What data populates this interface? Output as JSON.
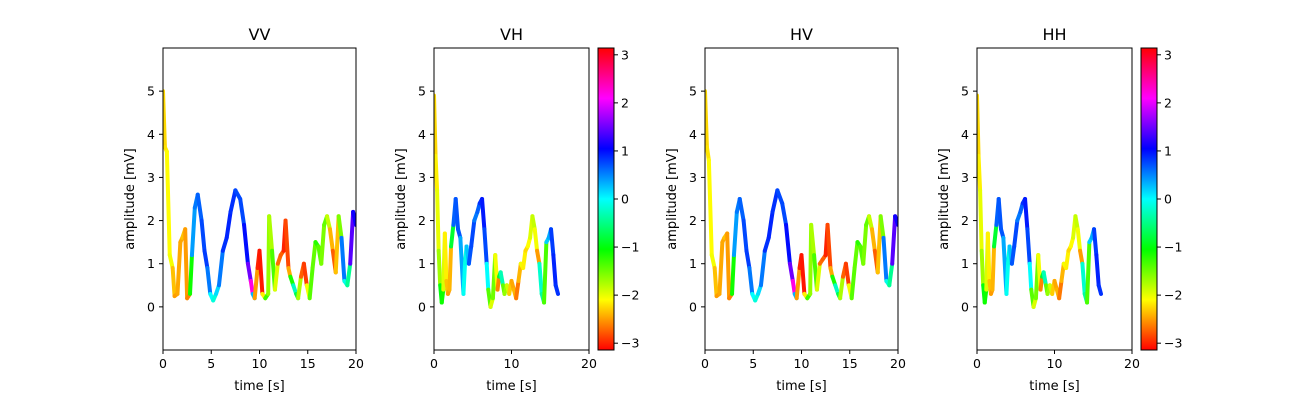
{
  "chart_data": [
    {
      "type": "line",
      "title": "VV",
      "xlabel": "time [s]",
      "ylabel": "amplitude [mV]",
      "xlim": [
        0,
        20
      ],
      "ylim": [
        -1,
        6
      ],
      "xticks": [
        0,
        5,
        10,
        15,
        20
      ],
      "yticks": [
        0,
        1,
        2,
        3,
        4,
        5
      ],
      "colorbar": false,
      "points": [
        [
          0.0,
          5.0,
          -2.3
        ],
        [
          0.2,
          3.7,
          -2.2
        ],
        [
          0.4,
          3.6,
          -2.2
        ],
        [
          0.7,
          1.2,
          -2.0
        ],
        [
          1.0,
          0.9,
          -2.1
        ],
        [
          1.2,
          0.25,
          -2.6
        ],
        [
          1.5,
          0.3,
          -2.4
        ],
        [
          1.8,
          1.5,
          -2.5
        ],
        [
          2.0,
          1.6,
          -2.4
        ],
        [
          2.3,
          1.8,
          -2.3
        ],
        [
          2.5,
          0.2,
          -2.7
        ],
        [
          2.8,
          0.3,
          -2.5
        ],
        [
          3.0,
          1.2,
          0.3
        ],
        [
          3.3,
          2.3,
          0.5
        ],
        [
          3.6,
          2.6,
          0.6
        ],
        [
          4.0,
          2.0,
          0.7
        ],
        [
          4.3,
          1.3,
          0.8
        ],
        [
          4.6,
          0.9,
          0.8
        ],
        [
          4.9,
          0.3,
          0.3
        ],
        [
          5.2,
          0.15,
          -0.3
        ],
        [
          5.5,
          0.3,
          0.0
        ],
        [
          5.8,
          0.5,
          0.3
        ],
        [
          6.2,
          1.3,
          0.8
        ],
        [
          6.6,
          1.6,
          0.9
        ],
        [
          7.0,
          2.2,
          0.9
        ],
        [
          7.5,
          2.7,
          0.8
        ],
        [
          8.0,
          2.5,
          0.7
        ],
        [
          8.4,
          1.9,
          0.8
        ],
        [
          8.8,
          1.0,
          1.2
        ],
        [
          9.1,
          0.6,
          1.8
        ],
        [
          9.3,
          0.3,
          2.6
        ],
        [
          9.5,
          0.2,
          -2.0
        ],
        [
          9.8,
          0.9,
          -3.0
        ],
        [
          10.0,
          1.3,
          -3.0
        ],
        [
          10.3,
          0.3,
          -3.1
        ],
        [
          10.6,
          0.2,
          -1.2
        ],
        [
          10.9,
          0.3,
          -1.4
        ],
        [
          11.0,
          2.1,
          -1.9
        ],
        [
          11.3,
          1.3,
          -1.6
        ],
        [
          11.6,
          0.4,
          -1.1
        ],
        [
          11.9,
          1.0,
          -2.8
        ],
        [
          12.2,
          1.2,
          -2.6
        ],
        [
          12.5,
          1.3,
          -2.9
        ],
        [
          12.7,
          2.0,
          -3.1
        ],
        [
          13.0,
          0.9,
          -2.6
        ],
        [
          13.2,
          0.7,
          -2.3
        ],
        [
          13.5,
          0.5,
          0.0
        ],
        [
          13.8,
          0.3,
          -0.5
        ],
        [
          14.0,
          0.2,
          -1.0
        ],
        [
          14.3,
          0.7,
          -2.5
        ],
        [
          14.6,
          1.0,
          -3.0
        ],
        [
          14.9,
          0.5,
          -2.8
        ],
        [
          15.2,
          0.2,
          -1.3
        ],
        [
          15.5,
          0.9,
          -1.5
        ],
        [
          15.8,
          1.5,
          -1.4
        ],
        [
          16.1,
          1.4,
          -1.0
        ],
        [
          16.4,
          1.0,
          -1.8
        ],
        [
          16.7,
          1.9,
          -1.3
        ],
        [
          17.0,
          2.1,
          -1.6
        ],
        [
          17.3,
          1.8,
          -2.1
        ],
        [
          17.6,
          1.3,
          -2.7
        ],
        [
          17.9,
          0.8,
          -2.8
        ],
        [
          18.2,
          2.1,
          -1.9
        ],
        [
          18.5,
          1.6,
          -1.2
        ],
        [
          18.8,
          0.6,
          2.3
        ],
        [
          19.1,
          0.5,
          -2.5
        ],
        [
          19.4,
          1.0,
          1.6
        ],
        [
          19.7,
          2.2,
          1.2
        ],
        [
          20.0,
          1.9,
          1.0
        ]
      ]
    },
    {
      "type": "line",
      "title": "VH",
      "xlabel": "time [s]",
      "ylabel": "amplitude [mV]",
      "xlim": [
        0,
        20
      ],
      "ylim": [
        -1,
        6
      ],
      "xticks": [
        0,
        10,
        20
      ],
      "yticks": [
        0,
        1,
        2,
        3,
        4,
        5
      ],
      "colorbar": true,
      "colorbar_ticks": [
        3,
        2,
        1,
        0,
        -1,
        -2,
        -3
      ],
      "points": [
        [
          0.0,
          4.9,
          -2.3
        ],
        [
          0.2,
          3.5,
          -2.2
        ],
        [
          0.4,
          2.7,
          -2.1
        ],
        [
          0.6,
          1.3,
          -1.9
        ],
        [
          0.8,
          0.5,
          -1.5
        ],
        [
          1.0,
          0.1,
          -0.5
        ],
        [
          1.2,
          0.4,
          -1.7
        ],
        [
          1.4,
          1.7,
          -2.2
        ],
        [
          1.6,
          0.6,
          -2.1
        ],
        [
          1.8,
          0.3,
          -2.6
        ],
        [
          2.0,
          0.4,
          -2.4
        ],
        [
          2.2,
          1.4,
          -2.4
        ],
        [
          2.5,
          1.9,
          0.7
        ],
        [
          2.8,
          2.5,
          0.6
        ],
        [
          3.1,
          1.8,
          0.8
        ],
        [
          3.4,
          1.6,
          0.6
        ],
        [
          3.8,
          0.3,
          0.1
        ],
        [
          4.0,
          1.0,
          -0.2
        ],
        [
          4.2,
          1.4,
          0.0
        ],
        [
          4.5,
          1.0,
          0.5
        ],
        [
          4.8,
          1.4,
          0.9
        ],
        [
          5.2,
          2.0,
          0.6
        ],
        [
          5.6,
          2.2,
          0.5
        ],
        [
          5.9,
          2.4,
          0.8
        ],
        [
          6.2,
          2.5,
          0.9
        ],
        [
          6.5,
          1.8,
          1.0
        ],
        [
          6.8,
          1.0,
          0.5
        ],
        [
          7.0,
          0.4,
          -0.5
        ],
        [
          7.3,
          0.0,
          -2.3
        ],
        [
          7.6,
          0.2,
          -1.6
        ],
        [
          7.9,
          1.2,
          -1.4
        ],
        [
          8.2,
          0.4,
          -2.7
        ],
        [
          8.4,
          0.7,
          -2.5
        ],
        [
          8.6,
          0.8,
          0.8
        ],
        [
          8.9,
          0.5,
          -1.4
        ],
        [
          9.1,
          0.3,
          -1.5
        ],
        [
          9.4,
          0.5,
          -1.8
        ],
        [
          9.7,
          0.3,
          -2.0
        ],
        [
          10.0,
          0.6,
          -2.6
        ],
        [
          10.3,
          0.4,
          -2.3
        ],
        [
          10.6,
          0.2,
          -2.5
        ],
        [
          10.9,
          0.6,
          -2.8
        ],
        [
          11.2,
          1.0,
          -2.0
        ],
        [
          11.5,
          0.9,
          -2.1
        ],
        [
          11.8,
          1.3,
          -2.2
        ],
        [
          12.1,
          1.4,
          -2.3
        ],
        [
          12.4,
          1.6,
          -1.9
        ],
        [
          12.7,
          2.1,
          -2.0
        ],
        [
          13.0,
          1.8,
          -1.7
        ],
        [
          13.3,
          1.3,
          -2.4
        ],
        [
          13.6,
          1.0,
          -2.6
        ],
        [
          13.9,
          0.3,
          2.2
        ],
        [
          14.2,
          0.1,
          -3.0
        ],
        [
          14.5,
          1.5,
          0.3
        ],
        [
          14.8,
          1.6,
          0.1
        ],
        [
          15.1,
          1.8,
          0.6
        ],
        [
          15.4,
          1.2,
          1.0
        ],
        [
          15.7,
          0.5,
          0.8
        ],
        [
          16.0,
          0.3,
          0.9
        ]
      ]
    },
    {
      "type": "line",
      "title": "HV",
      "xlabel": "time [s]",
      "ylabel": "amplitude [mV]",
      "xlim": [
        0,
        20
      ],
      "ylim": [
        -1,
        6
      ],
      "xticks": [
        0,
        5,
        10,
        15,
        20
      ],
      "yticks": [
        0,
        1,
        2,
        3,
        4,
        5
      ],
      "colorbar": false,
      "points": [
        [
          0.0,
          5.0,
          -2.3
        ],
        [
          0.2,
          3.7,
          -2.2
        ],
        [
          0.4,
          3.4,
          -2.2
        ],
        [
          0.7,
          1.2,
          -2.0
        ],
        [
          1.0,
          0.9,
          -2.1
        ],
        [
          1.2,
          0.25,
          -2.6
        ],
        [
          1.5,
          0.3,
          -2.4
        ],
        [
          1.8,
          1.5,
          -2.5
        ],
        [
          2.0,
          1.6,
          -2.4
        ],
        [
          2.3,
          1.7,
          -2.3
        ],
        [
          2.5,
          0.2,
          -2.7
        ],
        [
          2.8,
          0.3,
          -2.5
        ],
        [
          3.0,
          1.2,
          0.3
        ],
        [
          3.3,
          2.2,
          0.5
        ],
        [
          3.6,
          2.5,
          0.6
        ],
        [
          4.0,
          2.0,
          0.7
        ],
        [
          4.3,
          1.3,
          0.8
        ],
        [
          4.6,
          0.9,
          0.8
        ],
        [
          4.9,
          0.3,
          0.3
        ],
        [
          5.2,
          0.15,
          -0.3
        ],
        [
          5.5,
          0.3,
          0.0
        ],
        [
          5.8,
          0.5,
          0.3
        ],
        [
          6.2,
          1.3,
          0.8
        ],
        [
          6.6,
          1.6,
          0.9
        ],
        [
          7.0,
          2.2,
          0.9
        ],
        [
          7.5,
          2.7,
          0.8
        ],
        [
          8.0,
          2.4,
          0.7
        ],
        [
          8.4,
          1.9,
          0.8
        ],
        [
          8.8,
          1.0,
          1.2
        ],
        [
          9.1,
          0.6,
          1.8
        ],
        [
          9.3,
          0.3,
          2.6
        ],
        [
          9.5,
          0.2,
          -2.0
        ],
        [
          9.8,
          0.9,
          -3.0
        ],
        [
          10.0,
          1.2,
          -3.0
        ],
        [
          10.3,
          0.3,
          -3.1
        ],
        [
          10.6,
          0.2,
          -1.2
        ],
        [
          10.9,
          0.3,
          -1.4
        ],
        [
          11.0,
          1.9,
          -1.9
        ],
        [
          11.3,
          1.2,
          -1.6
        ],
        [
          11.6,
          0.4,
          -1.1
        ],
        [
          11.9,
          1.0,
          -2.8
        ],
        [
          12.2,
          1.1,
          -2.6
        ],
        [
          12.5,
          1.2,
          -2.9
        ],
        [
          12.7,
          1.9,
          -3.1
        ],
        [
          13.0,
          0.9,
          -2.6
        ],
        [
          13.2,
          0.7,
          -2.3
        ],
        [
          13.5,
          0.5,
          0.0
        ],
        [
          13.8,
          0.3,
          -0.5
        ],
        [
          14.0,
          0.2,
          -1.0
        ],
        [
          14.3,
          0.7,
          -2.5
        ],
        [
          14.6,
          1.0,
          -3.0
        ],
        [
          14.9,
          0.5,
          -2.8
        ],
        [
          15.2,
          0.2,
          -1.3
        ],
        [
          15.5,
          0.9,
          -1.5
        ],
        [
          15.8,
          1.5,
          -1.4
        ],
        [
          16.1,
          1.4,
          -1.0
        ],
        [
          16.4,
          1.0,
          -1.8
        ],
        [
          16.7,
          1.9,
          -1.3
        ],
        [
          17.0,
          2.1,
          -1.6
        ],
        [
          17.3,
          1.8,
          -2.1
        ],
        [
          17.6,
          1.3,
          -2.7
        ],
        [
          17.9,
          0.8,
          -2.8
        ],
        [
          18.2,
          2.1,
          -1.9
        ],
        [
          18.5,
          1.6,
          -1.2
        ],
        [
          18.8,
          0.6,
          2.3
        ],
        [
          19.1,
          0.5,
          -2.5
        ],
        [
          19.4,
          1.0,
          1.6
        ],
        [
          19.7,
          2.1,
          1.2
        ],
        [
          20.0,
          1.9,
          1.0
        ]
      ]
    },
    {
      "type": "line",
      "title": "HH",
      "xlabel": "time [s]",
      "ylabel": "amplitude [mV]",
      "xlim": [
        0,
        20
      ],
      "ylim": [
        -1,
        6
      ],
      "xticks": [
        0,
        10,
        20
      ],
      "yticks": [
        0,
        1,
        2,
        3,
        4,
        5
      ],
      "colorbar": true,
      "colorbar_ticks": [
        3,
        2,
        1,
        0,
        -1,
        -2,
        -3
      ],
      "points": [
        [
          0.0,
          4.9,
          -2.3
        ],
        [
          0.2,
          3.5,
          -2.2
        ],
        [
          0.4,
          2.7,
          -2.1
        ],
        [
          0.6,
          1.3,
          -1.9
        ],
        [
          0.8,
          0.5,
          -1.5
        ],
        [
          1.0,
          0.1,
          -0.5
        ],
        [
          1.2,
          0.4,
          -1.7
        ],
        [
          1.4,
          1.7,
          -2.2
        ],
        [
          1.6,
          0.6,
          -2.1
        ],
        [
          1.8,
          0.3,
          -2.6
        ],
        [
          2.0,
          0.4,
          -2.4
        ],
        [
          2.2,
          1.4,
          -2.4
        ],
        [
          2.5,
          1.9,
          0.7
        ],
        [
          2.8,
          2.5,
          0.6
        ],
        [
          3.1,
          1.8,
          0.8
        ],
        [
          3.4,
          1.6,
          0.6
        ],
        [
          3.8,
          0.3,
          0.1
        ],
        [
          4.0,
          1.0,
          -0.2
        ],
        [
          4.2,
          1.4,
          0.0
        ],
        [
          4.5,
          1.0,
          0.5
        ],
        [
          4.8,
          1.4,
          0.9
        ],
        [
          5.2,
          2.0,
          0.6
        ],
        [
          5.6,
          2.2,
          0.5
        ],
        [
          5.9,
          2.4,
          0.8
        ],
        [
          6.2,
          2.5,
          0.9
        ],
        [
          6.5,
          1.8,
          1.0
        ],
        [
          6.8,
          1.0,
          0.5
        ],
        [
          7.0,
          0.4,
          -0.5
        ],
        [
          7.3,
          0.0,
          -2.3
        ],
        [
          7.6,
          0.2,
          -1.6
        ],
        [
          7.9,
          1.2,
          -1.4
        ],
        [
          8.2,
          0.4,
          -2.7
        ],
        [
          8.4,
          0.7,
          -2.5
        ],
        [
          8.6,
          0.8,
          0.8
        ],
        [
          8.9,
          0.5,
          -1.4
        ],
        [
          9.1,
          0.3,
          -1.5
        ],
        [
          9.4,
          0.5,
          -1.8
        ],
        [
          9.7,
          0.3,
          -2.0
        ],
        [
          10.0,
          0.6,
          -2.6
        ],
        [
          10.3,
          0.4,
          -2.3
        ],
        [
          10.6,
          0.2,
          -2.5
        ],
        [
          10.9,
          0.6,
          -2.8
        ],
        [
          11.2,
          1.0,
          -2.0
        ],
        [
          11.5,
          0.9,
          -2.1
        ],
        [
          11.8,
          1.3,
          -2.2
        ],
        [
          12.1,
          1.4,
          -2.3
        ],
        [
          12.4,
          1.6,
          -1.9
        ],
        [
          12.7,
          2.1,
          -2.0
        ],
        [
          13.0,
          1.8,
          -1.7
        ],
        [
          13.3,
          1.3,
          -2.4
        ],
        [
          13.6,
          1.0,
          -2.6
        ],
        [
          13.9,
          0.3,
          2.2
        ],
        [
          14.2,
          0.1,
          -3.0
        ],
        [
          14.5,
          1.5,
          0.3
        ],
        [
          14.8,
          1.6,
          0.1
        ],
        [
          15.1,
          1.8,
          0.6
        ],
        [
          15.4,
          1.2,
          1.0
        ],
        [
          15.7,
          0.5,
          0.8
        ],
        [
          16.0,
          0.3,
          0.9
        ]
      ]
    }
  ]
}
